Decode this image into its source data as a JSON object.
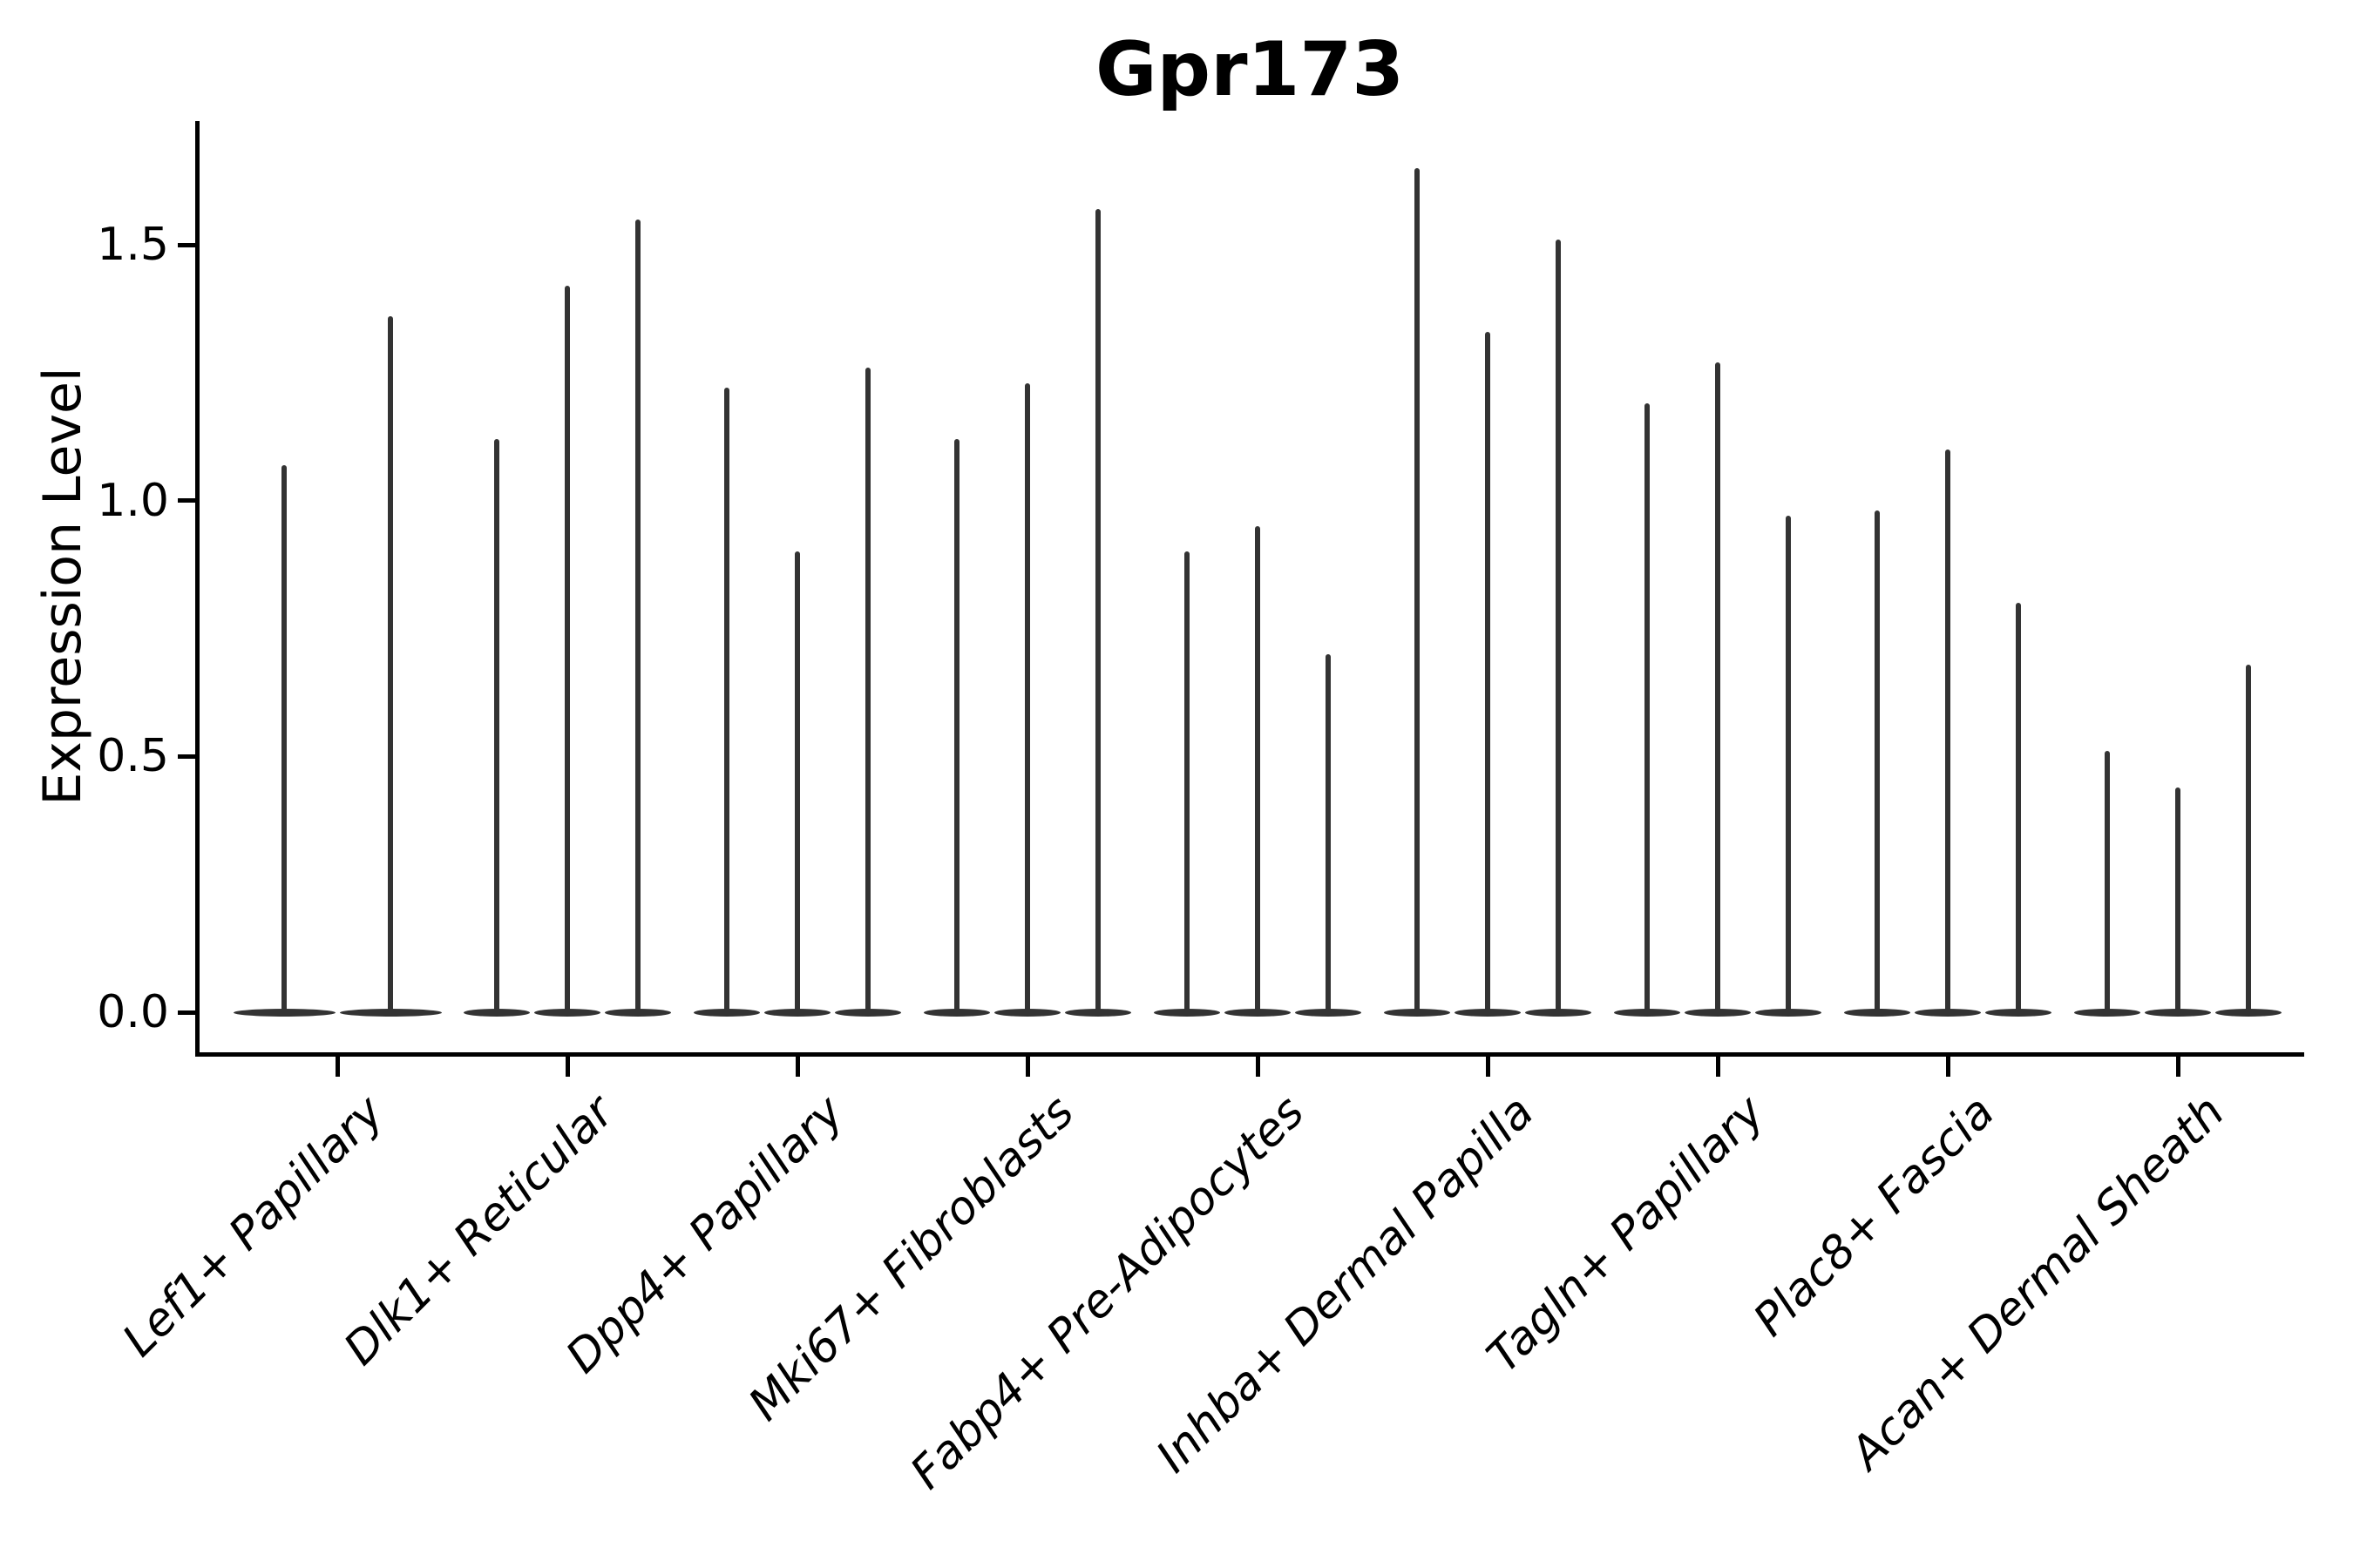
{
  "figure": {
    "background": "#ffffff"
  },
  "chart_data": {
    "type": "violin",
    "title": "Gpr173",
    "ylabel": "Expression Level",
    "xlabel": "",
    "ylim": [
      0,
      1.8
    ],
    "grid": false,
    "legend": "none",
    "colors": {
      "violin": "#333333",
      "axis": "#000000",
      "text": "#000000",
      "background": "#ffffff"
    },
    "yticks": [
      {
        "value": 0.0,
        "label": "0.0"
      },
      {
        "value": 0.5,
        "label": "0.5"
      },
      {
        "value": 1.0,
        "label": "1.0"
      },
      {
        "value": 1.5,
        "label": "1.5"
      }
    ],
    "x_tick_rotation_deg": 45,
    "x_tick_font_style": "italic",
    "style_note": "Monochrome needle violins: nearly all density collapsed at 0 (flat pancake on the baseline) with a thin spike rising to the maximum expression value of each violin.",
    "categories": [
      "Lef1+ Papillary",
      "Dlk1+ Reticular",
      "Dpp4+ Papillary",
      "Mki67+ Fibroblasts",
      "Fabp4+ Pre-Adipocytes",
      "Inhba+ Dermal Papilla",
      "Tagln+ Papillary",
      "Plac8+ Fascia",
      "Acan+ Dermal Sheath"
    ],
    "groups": [
      {
        "category": "Lef1+ Papillary",
        "violin_peaks": [
          1.07,
          1.36
        ]
      },
      {
        "category": "Dlk1+ Reticular",
        "violin_peaks": [
          1.12,
          1.42,
          1.55
        ]
      },
      {
        "category": "Dpp4+ Papillary",
        "violin_peaks": [
          1.22,
          0.9,
          1.26
        ]
      },
      {
        "category": "Mki67+ Fibroblasts",
        "violin_peaks": [
          1.12,
          1.23,
          1.57
        ]
      },
      {
        "category": "Fabp4+ Pre-Adipocytes",
        "violin_peaks": [
          0.9,
          0.95,
          0.7
        ]
      },
      {
        "category": "Inhba+ Dermal Papilla",
        "violin_peaks": [
          1.65,
          1.33,
          1.51
        ]
      },
      {
        "category": "Tagln+ Papillary",
        "violin_peaks": [
          1.19,
          1.27,
          0.97
        ]
      },
      {
        "category": "Plac8+ Fascia",
        "violin_peaks": [
          0.98,
          1.1,
          0.8
        ]
      },
      {
        "category": "Acan+ Dermal Sheath",
        "violin_peaks": [
          0.51,
          0.44,
          0.68
        ]
      }
    ]
  }
}
